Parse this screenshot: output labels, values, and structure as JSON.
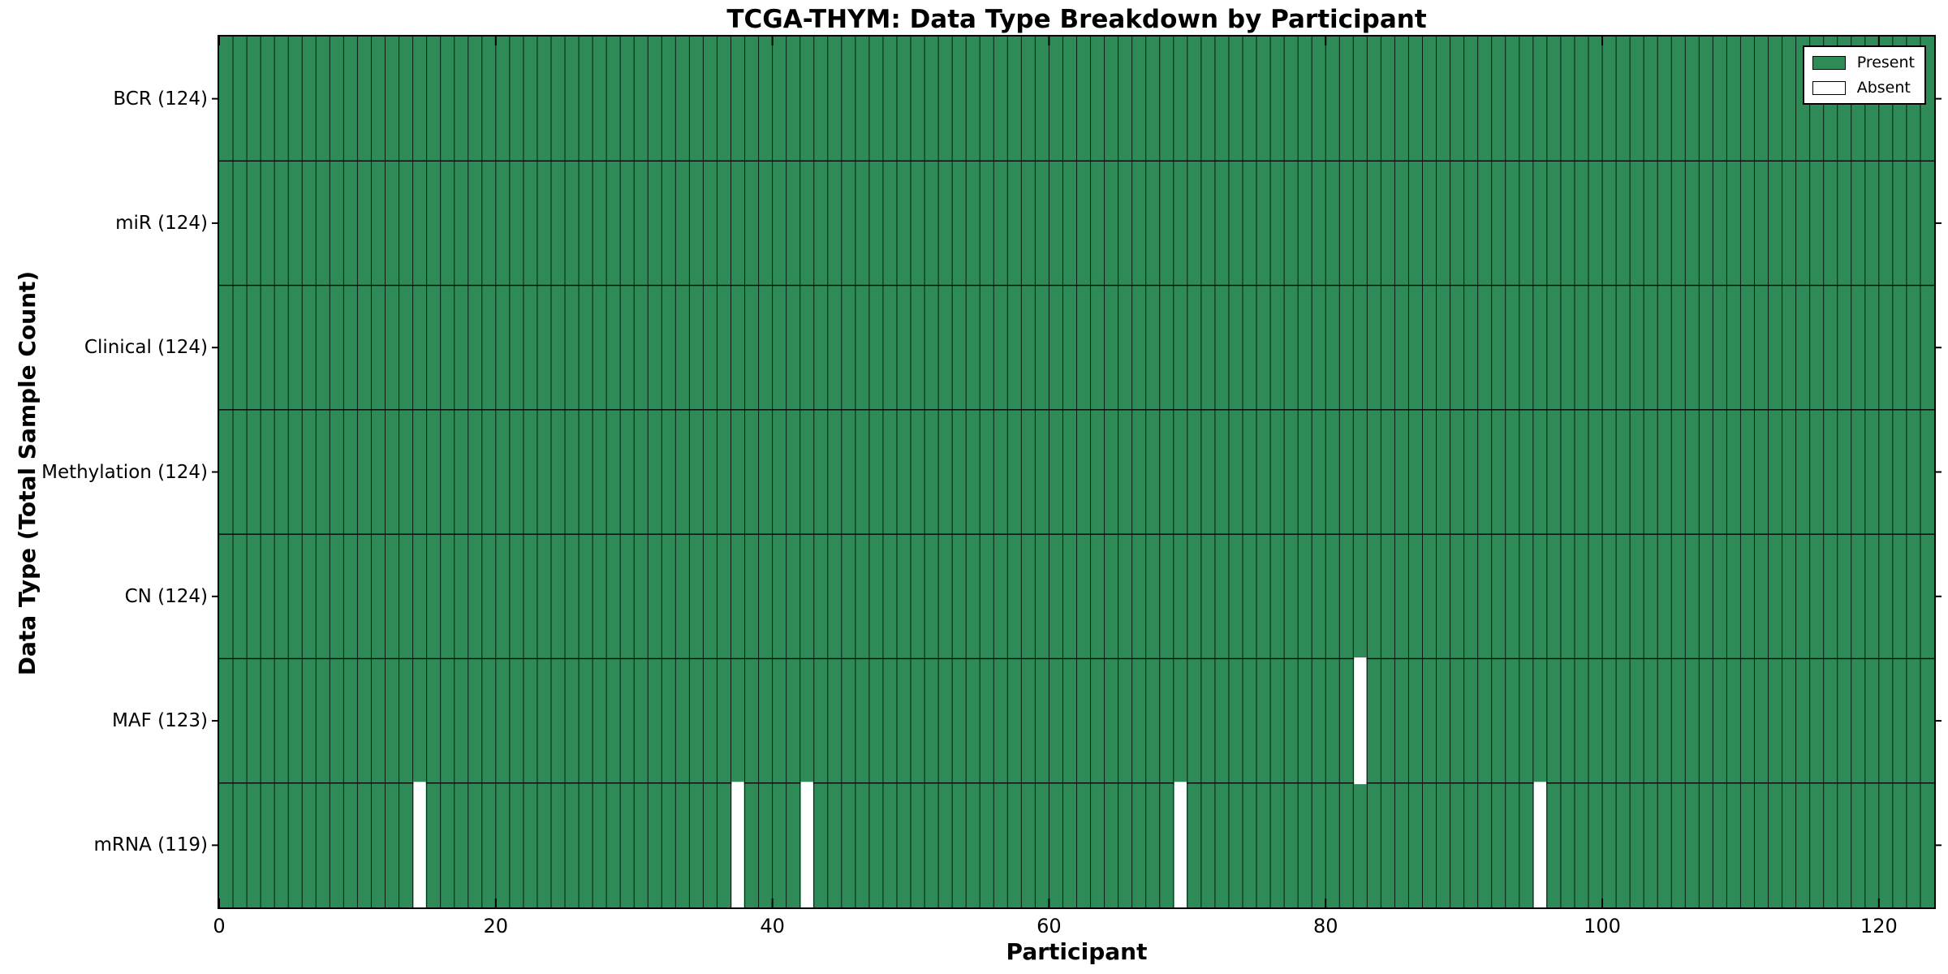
{
  "chart_data": {
    "type": "heatmap",
    "title": "TCGA-THYM: Data Type Breakdown by Participant",
    "xlabel": "Participant",
    "ylabel": "Data Type (Total Sample Count)",
    "xlim": [
      0,
      124
    ],
    "x_ticks": [
      0,
      20,
      40,
      60,
      80,
      100,
      120
    ],
    "n_participants": 124,
    "grid": "cell-borders",
    "legend_position": "upper right",
    "rows": [
      {
        "data_type": "BCR",
        "total": 124,
        "label": "BCR (124)",
        "absent_participants": []
      },
      {
        "data_type": "miR",
        "total": 124,
        "label": "miR (124)",
        "absent_participants": []
      },
      {
        "data_type": "Clinical",
        "total": 124,
        "label": "Clinical (124)",
        "absent_participants": []
      },
      {
        "data_type": "Methylation",
        "total": 124,
        "label": "Methylation (124)",
        "absent_participants": []
      },
      {
        "data_type": "CN",
        "total": 124,
        "label": "CN (124)",
        "absent_participants": []
      },
      {
        "data_type": "MAF",
        "total": 123,
        "label": "MAF (123)",
        "absent_participants": [
          82
        ]
      },
      {
        "data_type": "mRNA",
        "total": 119,
        "label": "mRNA (119)",
        "absent_participants": [
          14,
          37,
          42,
          69,
          95
        ]
      }
    ],
    "legend": [
      {
        "label": "Present",
        "color": "#2e8b57"
      },
      {
        "label": "Absent",
        "color": "#ffffff"
      }
    ],
    "colors": {
      "present": "#2e8b57",
      "absent": "#ffffff",
      "cell_edge": "#000000",
      "spine": "#000000",
      "background": "#ffffff",
      "text": "#000000"
    }
  }
}
